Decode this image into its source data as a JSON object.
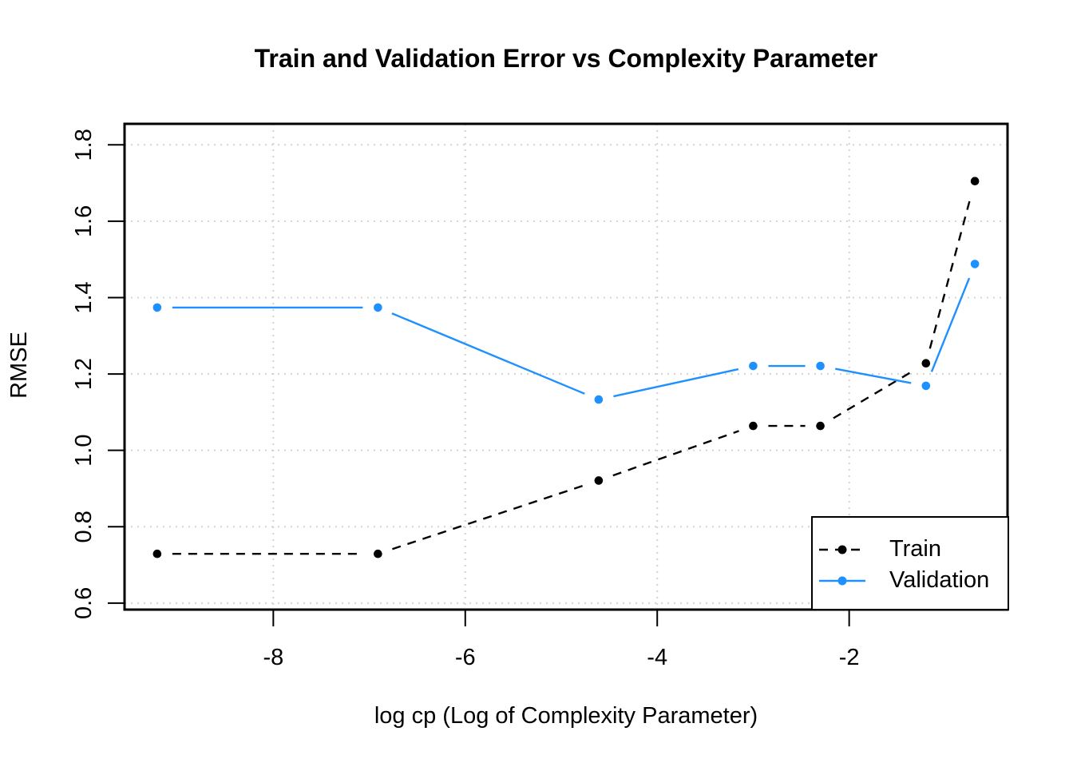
{
  "chart_data": {
    "type": "line",
    "title": "Train and Validation Error vs Complexity Parameter",
    "xlabel": "log cp (Log of Complexity Parameter)",
    "ylabel": "RMSE",
    "x": [
      -9.21,
      -6.91,
      -4.61,
      -3.0,
      -2.3,
      -1.2,
      -0.69
    ],
    "series": [
      {
        "name": "Train",
        "values": [
          0.729,
          0.729,
          0.921,
          1.064,
          1.064,
          1.228,
          1.705
        ],
        "color": "#000000",
        "line_style": "dashed",
        "marker": "filled-circle"
      },
      {
        "name": "Validation",
        "values": [
          1.374,
          1.374,
          1.133,
          1.221,
          1.221,
          1.169,
          1.488
        ],
        "color": "#1E90FF",
        "line_style": "solid",
        "marker": "filled-circle"
      }
    ],
    "x_ticks": [
      -8,
      -6,
      -4,
      -2
    ],
    "y_ticks": [
      0.6,
      0.8,
      1.0,
      1.2,
      1.4,
      1.6,
      1.8
    ],
    "xlim": [
      -9.55,
      -0.35
    ],
    "ylim": [
      0.583,
      1.855
    ],
    "grid": true,
    "grid_style": "dotted",
    "grid_color": "#D3D3D3",
    "axis_color": "#000000",
    "background": "#FFFFFF",
    "legend_position": "bottomright",
    "legend_items": [
      "Train",
      "Validation"
    ]
  }
}
